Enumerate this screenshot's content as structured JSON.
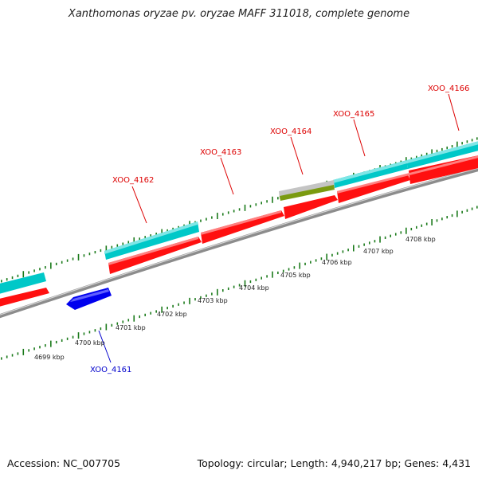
{
  "title": "Xanthomonas oryzae pv. oryzae MAFF 311018, complete genome",
  "footer": {
    "accession": "Accession: NC_007705",
    "summary": "Topology: circular; Length: 4,940,217 bp; Genes: 4,431"
  },
  "scale": {
    "unit": "kbp",
    "tick_labels": [
      "4699 kbp",
      "4700 kbp",
      "4701 kbp",
      "4702 kbp",
      "4703 kbp",
      "4704 kbp",
      "4705 kbp",
      "4706 kbp",
      "4707 kbp",
      "4708 kbp"
    ]
  },
  "genes": [
    {
      "label": "XOO_4161",
      "strand": "-",
      "color": "#0000ee",
      "label_color": "#0000cc"
    },
    {
      "label": "XOO_4162",
      "strand": "+",
      "color": "#ff0000",
      "label_color": "#dd0000"
    },
    {
      "label": "XOO_4163",
      "strand": "+",
      "color": "#ff0000",
      "label_color": "#dd0000"
    },
    {
      "label": "XOO_4164",
      "strand": "+",
      "color": "#ff0000",
      "label_color": "#dd0000"
    },
    {
      "label": "XOO_4165",
      "strand": "+",
      "color": "#ff0000",
      "label_color": "#dd0000"
    },
    {
      "label": "XOO_4166",
      "strand": "+",
      "color": "#ff0000",
      "label_color": "#dd0000"
    }
  ],
  "colors": {
    "cds_plus": "#ff0000",
    "cds_minus": "#0000ee",
    "cog_track": "#00c8c8",
    "other_track": "#c8c8c8",
    "olive_track": "#7a9a10",
    "backbone": "#909090",
    "tick": "#1a7a1a"
  }
}
